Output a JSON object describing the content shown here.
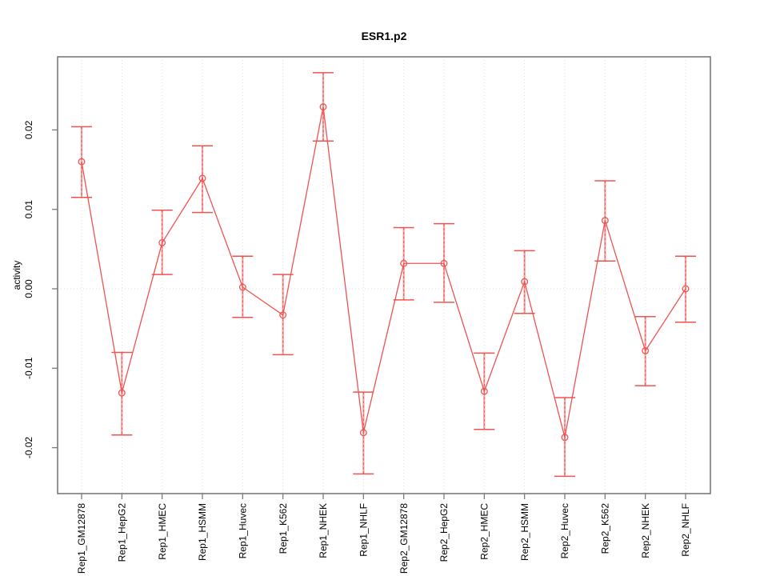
{
  "window": {
    "title": "ESR1.p2"
  },
  "chart_data": {
    "type": "line",
    "title": "ESR1.p2",
    "xlabel": "",
    "ylabel": "activity",
    "legend_position": "none",
    "marker": "open-circle",
    "grid": {
      "vertical": "dotted",
      "zero_line": "dotted",
      "horizontal": "off"
    },
    "categories": [
      "Rep1_GM12878",
      "Rep1_HepG2",
      "Rep1_HMEC",
      "Rep1_HSMM",
      "Rep1_Huvec",
      "Rep1_K562",
      "Rep1_NHEK",
      "Rep1_NHLF",
      "Rep2_GM12878",
      "Rep2_HepG2",
      "Rep2_HMEC",
      "Rep2_HSMM",
      "Rep2_Huvec",
      "Rep2_K562",
      "Rep2_NHEK",
      "Rep2_NHLF"
    ],
    "series": [
      {
        "name": "activity",
        "values": [
          0.016,
          -0.0131,
          0.0058,
          0.0139,
          0.0002,
          -0.0033,
          0.0229,
          -0.0181,
          0.0032,
          0.0032,
          -0.0129,
          0.0009,
          -0.0187,
          0.0086,
          -0.0078,
          0.0
        ],
        "ci_low": [
          0.0115,
          -0.0184,
          0.0018,
          0.0096,
          -0.0036,
          -0.0083,
          0.0186,
          -0.0233,
          -0.0014,
          -0.0017,
          -0.0177,
          -0.0031,
          -0.0236,
          0.0035,
          -0.0122,
          -0.0042
        ],
        "ci_high": [
          0.0204,
          -0.008,
          0.0099,
          0.018,
          0.0041,
          0.0018,
          0.0272,
          -0.013,
          0.0077,
          0.0082,
          -0.0081,
          0.0048,
          -0.0137,
          0.0136,
          -0.0035,
          0.0041
        ]
      }
    ],
    "y_ticks": [
      -0.02,
      -0.01,
      0,
      0.01,
      0.02
    ],
    "y_tick_labels": [
      "-0.02",
      "-0.01",
      "0.00",
      "0.01",
      "0.02"
    ],
    "ylim": [
      -0.0258,
      0.0292
    ],
    "colors": {
      "series": "#ef5350",
      "error_bar_fill": "#f7a3a3",
      "grid": "#dcdcdc",
      "axis_box": "#7a7a7a",
      "text": "#000000",
      "background": "#ffffff"
    }
  }
}
